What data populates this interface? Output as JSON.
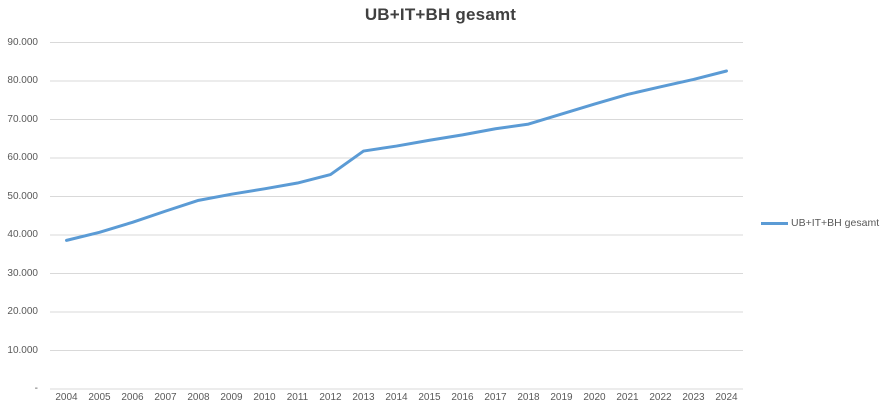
{
  "chart": {
    "title": "UB+IT+BH gesamt",
    "legend": {
      "label": "UB+IT+BH gesamt"
    }
  },
  "colors": {
    "series_line": "#5B9BD5",
    "gridline": "#D9D9D9",
    "axis_text": "#595959",
    "title_text": "#404040",
    "background": "#FFFFFF"
  },
  "chart_data": {
    "type": "line",
    "title": "UB+IT+BH gesamt",
    "x": [
      2004,
      2005,
      2006,
      2007,
      2008,
      2009,
      2010,
      2011,
      2012,
      2013,
      2014,
      2015,
      2016,
      2017,
      2018,
      2019,
      2020,
      2021,
      2022,
      2023,
      2024
    ],
    "series": [
      {
        "name": "UB+IT+BH gesamt",
        "color": "#5B9BD5",
        "values": [
          38600,
          40700,
          43300,
          46200,
          49000,
          50600,
          52000,
          53500,
          55700,
          61800,
          63100,
          64600,
          66000,
          67600,
          68800,
          71400,
          74000,
          76500,
          78500,
          80400,
          82600
        ]
      }
    ],
    "ylim": [
      0,
      90000
    ],
    "ytick_interval": 10000,
    "ytick_values": [
      0,
      10000,
      20000,
      30000,
      40000,
      50000,
      60000,
      70000,
      80000,
      90000
    ],
    "ytick_labels": [
      "-",
      "10.000",
      "20.000",
      "30.000",
      "40.000",
      "50.000",
      "60.000",
      "70.000",
      "80.000",
      "90.000"
    ],
    "xlabel": "",
    "ylabel": "",
    "grid": true,
    "legend_position": "right"
  }
}
